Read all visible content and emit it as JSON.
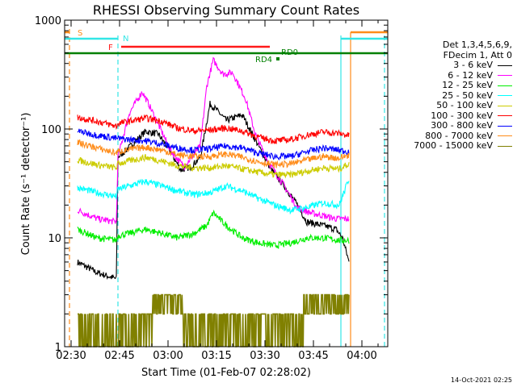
{
  "chart_data": {
    "type": "line",
    "title": "RHESSI Observing Summary Count Rates",
    "xlabel": "Start Time (01-Feb-07 02:28:02)",
    "ylabel": "Count Rate (s⁻¹ detector⁻¹)",
    "yscale": "log",
    "ylim": [
      1,
      1000
    ],
    "xlim_minutes": [
      0,
      100
    ],
    "x_ticks": [
      "02:30",
      "02:45",
      "03:00",
      "03:15",
      "03:30",
      "03:45",
      "04:00"
    ],
    "y_ticks": [
      "1",
      "10",
      "100",
      "1000"
    ],
    "legend_header": [
      "Det 1,3,4,5,6,9,",
      "FDecim 1, Att 0"
    ],
    "footer_date": "14-Oct-2021 02:25",
    "flags": [
      {
        "label": "S",
        "color": "#ff8c1a"
      },
      {
        "label": "N",
        "color": "#33e6e6"
      },
      {
        "label": "F",
        "color": "#ff1a1a"
      },
      {
        "label": "RD4",
        "color": "#008000"
      },
      {
        "label": "RD0",
        "color": "#008000"
      }
    ],
    "series": [
      {
        "name": "3 - 6 keV",
        "color": "#000000",
        "x": [
          4,
          10,
          16,
          16.5,
          20,
          25,
          29,
          33,
          36,
          39,
          42,
          45,
          47,
          50,
          55,
          60,
          64,
          68,
          72,
          75,
          80,
          84,
          86,
          88
        ],
        "y": [
          6,
          4.8,
          4.2,
          55,
          68,
          95,
          90,
          60,
          42,
          45,
          55,
          170,
          150,
          120,
          135,
          70,
          42,
          30,
          20,
          14,
          13,
          12,
          10,
          6
        ]
      },
      {
        "name": "6 - 12 keV",
        "color": "#ff00ff",
        "x": [
          4,
          10,
          16,
          16.5,
          20,
          24,
          26,
          29,
          33,
          37,
          42,
          44,
          46,
          49,
          52,
          56,
          59,
          63,
          68,
          72,
          76,
          80,
          84,
          88
        ],
        "y": [
          18,
          15,
          14,
          55,
          140,
          220,
          170,
          110,
          62,
          45,
          70,
          250,
          430,
          320,
          330,
          190,
          90,
          50,
          30,
          19,
          17,
          16,
          15,
          15
        ]
      },
      {
        "name": "12 - 25 keV",
        "color": "#00ee00",
        "x": [
          4,
          10,
          16,
          16.5,
          20,
          25,
          30,
          35,
          40,
          44,
          46,
          50,
          55,
          60,
          65,
          70,
          75,
          80,
          85,
          88
        ],
        "y": [
          12,
          10,
          9.5,
          10.5,
          11,
          12,
          11,
          10,
          11,
          13,
          17,
          13,
          10,
          9,
          8.5,
          9,
          10,
          10,
          9.5,
          9.5
        ]
      },
      {
        "name": "25 - 50 keV",
        "color": "#00ffff",
        "x": [
          4,
          10,
          16,
          16.5,
          20,
          25,
          30,
          35,
          40,
          45,
          50,
          55,
          60,
          65,
          70,
          75,
          80,
          85,
          88
        ],
        "y": [
          29,
          26,
          24,
          28,
          30,
          33,
          30,
          27,
          25,
          26,
          30,
          27,
          23,
          20,
          18,
          19,
          21,
          20,
          35
        ]
      },
      {
        "name": "50 - 100 keV",
        "color": "#cccc00",
        "x": [
          4,
          10,
          16,
          16.5,
          20,
          25,
          30,
          35,
          40,
          45,
          50,
          55,
          60,
          65,
          70,
          75,
          80,
          85,
          88
        ],
        "y": [
          52,
          47,
          44,
          48,
          51,
          55,
          51,
          46,
          44,
          44,
          46,
          43,
          40,
          38,
          38,
          41,
          44,
          43,
          48
        ]
      },
      {
        "name": "100 - 300 keV",
        "color": "#ff0000",
        "x": [
          4,
          10,
          16,
          16.5,
          20,
          25,
          30,
          35,
          40,
          45,
          50,
          55,
          60,
          65,
          70,
          75,
          80,
          85,
          88
        ],
        "y": [
          128,
          118,
          106,
          112,
          118,
          126,
          118,
          102,
          96,
          98,
          102,
          96,
          84,
          78,
          80,
          88,
          94,
          91,
          87
        ]
      },
      {
        "name": "300 - 800 keV",
        "color": "#0000ff",
        "x": [
          4,
          10,
          16,
          16.5,
          20,
          25,
          30,
          35,
          40,
          45,
          50,
          55,
          60,
          65,
          70,
          75,
          80,
          85,
          88
        ],
        "y": [
          96,
          88,
          82,
          82,
          80,
          78,
          73,
          67,
          64,
          66,
          70,
          67,
          60,
          56,
          56,
          62,
          67,
          64,
          62
        ]
      },
      {
        "name": "800 - 7000 keV",
        "color": "#ff8c1a",
        "x": [
          4,
          10,
          16,
          16.5,
          20,
          25,
          30,
          35,
          40,
          45,
          50,
          55,
          60,
          65,
          70,
          75,
          80,
          85,
          88
        ],
        "y": [
          75,
          67,
          60,
          62,
          65,
          68,
          64,
          58,
          56,
          56,
          59,
          55,
          50,
          47,
          48,
          52,
          56,
          54,
          58
        ]
      },
      {
        "name": "7000 - 15000 keV",
        "color": "#808000",
        "x": [
          4,
          10,
          16,
          16.5,
          20,
          25,
          30,
          35,
          40,
          45,
          50,
          55,
          60,
          65,
          70,
          75,
          80,
          85,
          88
        ],
        "y": [
          1.5,
          1.5,
          1.5,
          1.5,
          1.5,
          2.5,
          2.5,
          1.5,
          1.5,
          1.5,
          1.5,
          1.5,
          1.5,
          1.5,
          1.5,
          2.5,
          2.5,
          2.5,
          2.5
        ]
      }
    ]
  }
}
